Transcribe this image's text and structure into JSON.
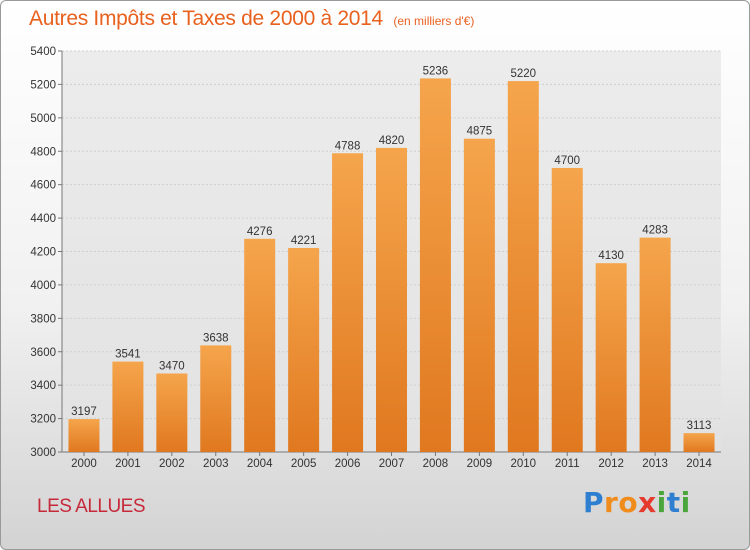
{
  "chart_data": {
    "type": "bar",
    "title": "Autres Impôts et Taxes de 2000 à 2014",
    "subtitle": "(en milliers d'€)",
    "categories": [
      "2000",
      "2001",
      "2002",
      "2003",
      "2004",
      "2005",
      "2006",
      "2007",
      "2008",
      "2009",
      "2010",
      "2011",
      "2012",
      "2013",
      "2014"
    ],
    "values": [
      3197,
      3541,
      3470,
      3638,
      4276,
      4221,
      4788,
      4820,
      5236,
      4875,
      5220,
      4700,
      4130,
      4283,
      3113
    ],
    "data_labels": [
      "3197",
      "3541",
      "3470",
      "3638",
      "4276",
      "4221",
      "4788",
      "4820",
      "5236",
      "4875",
      "5220",
      "4700",
      "4130",
      "4283",
      "3113"
    ],
    "y_ticks": [
      "3000",
      "3200",
      "3400",
      "3600",
      "3800",
      "4000",
      "4200",
      "4400",
      "4600",
      "4800",
      "5000",
      "5200",
      "5400"
    ],
    "ylim": [
      3000,
      5400
    ],
    "grid": true,
    "bar_color": "#f19a3e"
  },
  "footer": {
    "commune": "LES ALLUES"
  },
  "brand": {
    "name": "Proxiti",
    "letters": [
      {
        "ch": "P",
        "color": "#2f7fd1"
      },
      {
        "ch": "r",
        "color": "#f08c1c"
      },
      {
        "ch": "o",
        "color": "#f08c1c"
      },
      {
        "ch": "x",
        "color": "#e63a2e"
      },
      {
        "ch": "i",
        "color": "#4aa63b"
      },
      {
        "ch": "t",
        "color": "#2f7fd1"
      },
      {
        "ch": "i",
        "color": "#4aa63b"
      }
    ]
  }
}
